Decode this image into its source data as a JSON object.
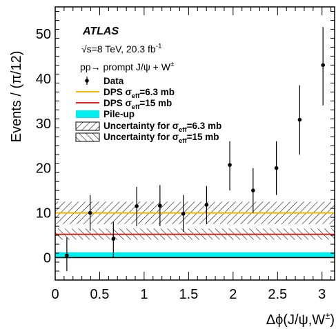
{
  "chart_data": {
    "type": "scatter",
    "experiment": "ATLAS",
    "energy_line": "√s=8 TeV, 20.3 fb",
    "energy_sup": "-1",
    "process_pre": "pp→ prompt J/ψ + W",
    "process_sup": "±",
    "xlabel_main": "Δϕ(J/ψ,W",
    "xlabel_sup": "±",
    "xlabel_end": ")",
    "ylabel": "Events / (π/12)",
    "xlim": [
      0,
      3.1416
    ],
    "ylim": [
      -5,
      56
    ],
    "xticks": [
      0,
      0.5,
      1,
      1.5,
      2,
      2.5,
      3
    ],
    "xtick_labels": [
      "0",
      "0.5",
      "1",
      "1.5",
      "2",
      "2.5",
      "3"
    ],
    "yticks": [
      0,
      10,
      20,
      30,
      40,
      50
    ],
    "ytick_labels": [
      "0",
      "10",
      "20",
      "30",
      "40",
      "50"
    ],
    "data": [
      {
        "x": 0.131,
        "y": 0.5,
        "lo": -3.0,
        "hi": 4.5
      },
      {
        "x": 0.393,
        "y": 10.0,
        "lo": 6.0,
        "hi": 14.0
      },
      {
        "x": 0.654,
        "y": 4.2,
        "lo": 0.0,
        "hi": 8.0
      },
      {
        "x": 0.916,
        "y": 11.5,
        "lo": 7.0,
        "hi": 15.8
      },
      {
        "x": 1.178,
        "y": 11.6,
        "lo": 7.0,
        "hi": 16.2
      },
      {
        "x": 1.44,
        "y": 9.8,
        "lo": 5.8,
        "hi": 14.0
      },
      {
        "x": 1.702,
        "y": 11.8,
        "lo": 7.5,
        "hi": 16.0
      },
      {
        "x": 1.963,
        "y": 20.7,
        "lo": 15.0,
        "hi": 26.0
      },
      {
        "x": 2.225,
        "y": 15.0,
        "lo": 10.0,
        "hi": 20.0
      },
      {
        "x": 2.487,
        "y": 20.0,
        "lo": 14.0,
        "hi": 26.0
      },
      {
        "x": 2.749,
        "y": 30.8,
        "lo": 23.0,
        "hi": 38.5
      },
      {
        "x": 3.011,
        "y": 43.0,
        "lo": 34.0,
        "hi": 51.5
      }
    ],
    "dps_63": {
      "value": 10.0,
      "band": [
        7.5,
        12.5
      ],
      "color": "#f2b800"
    },
    "dps_15": {
      "value": 5.2,
      "band": [
        4.0,
        6.5
      ],
      "color": "#e0201b"
    },
    "pileup": {
      "band": [
        0.0,
        1.2
      ],
      "color": "#00eeee"
    },
    "legend": {
      "data": "Data",
      "dps_63_pre": "DPS  σ",
      "dps_63_sub": "eff",
      "dps_63_post": "=6.3 mb",
      "dps_15_pre": "DPS  σ",
      "dps_15_sub": "eff",
      "dps_15_post": "=15 mb",
      "pileup": "Pile-up",
      "unc_63_pre": "Uncertainty for  σ",
      "unc_63_sub": "eff",
      "unc_63_post": "=6.3 mb",
      "unc_15_pre": "Uncertainty for  σ",
      "unc_15_sub": "eff",
      "unc_15_post": "=15 mb"
    }
  }
}
